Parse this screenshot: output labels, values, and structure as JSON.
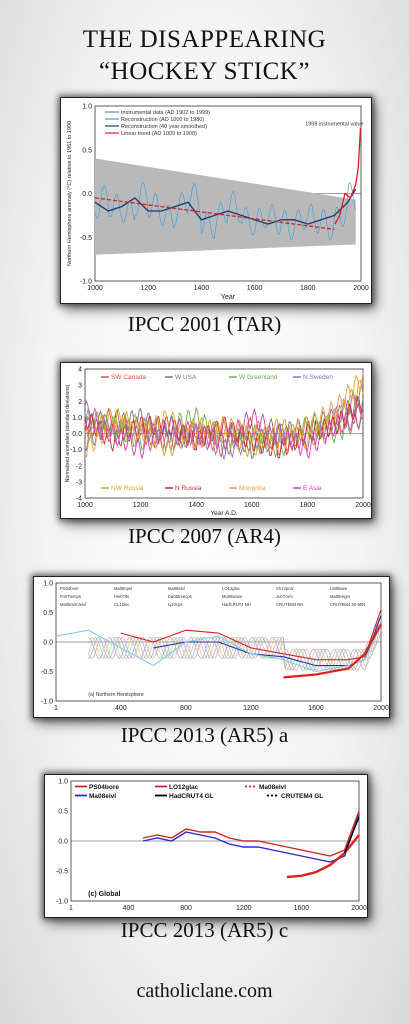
{
  "header": {
    "title_line1": "THE DISAPPEARING",
    "title_line2": "“HOCKEY STICK”"
  },
  "footer": {
    "site": "catholiclane.com"
  },
  "colors": {
    "gray_band": "#b9b9b9",
    "blue": "#2b6fb5",
    "dark": "#1a3a6e",
    "red": "#d22424"
  },
  "chart_data": [
    {
      "type": "line",
      "caption": "IPCC 2001 (TAR)",
      "xlabel": "Year",
      "ylabel": "Northern Hemisphere anomaly (°C) relative to 1961 to 1990",
      "xlim": [
        1000,
        2000
      ],
      "ylim": [
        -1.0,
        1.0
      ],
      "xticks": [
        1000,
        1200,
        1400,
        1600,
        1800,
        2000
      ],
      "yticks": [
        -1.0,
        -0.5,
        0.0,
        0.5,
        1.0
      ],
      "annotation": "1998 instrumental value",
      "legend": [
        "Instrumental data (AD 1902 to 1999)",
        "Reconstruction (AD 1000 to 1980)",
        "Reconstruction (40 year smoothed)",
        "Linear trend (AD 1000 to 1900)"
      ],
      "x": [
        1000,
        1050,
        1100,
        1150,
        1200,
        1250,
        1300,
        1350,
        1400,
        1450,
        1500,
        1550,
        1600,
        1650,
        1700,
        1750,
        1800,
        1850,
        1900,
        1950,
        1980
      ],
      "series": [
        {
          "name": "Reconstruction (40 year smoothed)",
          "values": [
            -0.1,
            -0.2,
            -0.15,
            -0.05,
            -0.2,
            -0.2,
            -0.15,
            -0.1,
            -0.3,
            -0.25,
            -0.2,
            -0.25,
            -0.3,
            -0.35,
            -0.3,
            -0.3,
            -0.35,
            -0.3,
            -0.25,
            -0.1,
            0.05
          ]
        },
        {
          "name": "Linear trend (AD 1000 to 1900)",
          "values": [
            -0.05,
            -0.07,
            -0.09,
            -0.11,
            -0.13,
            -0.15,
            -0.17,
            -0.19,
            -0.21,
            -0.23,
            -0.25,
            -0.27,
            -0.29,
            -0.31,
            -0.33,
            -0.35,
            -0.37,
            -0.39,
            -0.41,
            null,
            null
          ]
        },
        {
          "name": "Instrumental data (AD 1902 to 1999)",
          "x": [
            1902,
            1920,
            1940,
            1960,
            1980,
            1990,
            1998
          ],
          "values": [
            -0.35,
            -0.25,
            0.0,
            -0.05,
            0.1,
            0.3,
            0.75
          ]
        }
      ]
    },
    {
      "type": "line",
      "caption": "IPCC 2007 (AR4)",
      "xlabel": "Year A.D.",
      "ylabel": "Normalised anomalies (standard deviations)",
      "xlim": [
        1000,
        2000
      ],
      "ylim": [
        -4,
        4
      ],
      "xticks": [
        1000,
        1200,
        1400,
        1600,
        1800,
        2000
      ],
      "yticks": [
        -4,
        -3,
        -2,
        -1,
        0,
        1,
        2,
        3,
        4
      ],
      "x": [
        1000,
        1100,
        1200,
        1300,
        1400,
        1500,
        1600,
        1700,
        1800,
        1900,
        2000
      ],
      "series": [
        {
          "name": "SW Canada",
          "color": "#e05050",
          "values": [
            0.5,
            1,
            0,
            -0.5,
            0.3,
            -1,
            0.5,
            -0.8,
            0.2,
            0.5,
            1.5
          ]
        },
        {
          "name": "W USA",
          "color": "#777777",
          "values": [
            -0.5,
            0.5,
            1,
            0,
            -0.5,
            0.5,
            -1,
            0,
            0.5,
            1,
            2
          ]
        },
        {
          "name": "W Greenland",
          "color": "#6ab04c",
          "values": [
            1,
            0.5,
            -0.5,
            0.5,
            1,
            -0.5,
            0,
            -1,
            0.5,
            0,
            1
          ]
        },
        {
          "name": "N Sweden",
          "color": "#9a6ac0",
          "values": [
            1.5,
            0,
            0.5,
            -0.5,
            0,
            -1,
            -0.5,
            0,
            -0.5,
            1,
            2.5
          ]
        },
        {
          "name": "NW Russia",
          "color": "#c0b020",
          "values": [
            0,
            1,
            0.5,
            -1,
            0.5,
            0,
            -1,
            0.5,
            -0.5,
            1,
            3
          ]
        },
        {
          "name": "N Russia",
          "color": "#c03030",
          "values": [
            1,
            -0.5,
            0.5,
            0.5,
            -0.5,
            0.5,
            -0.5,
            -1,
            0,
            0.5,
            2
          ]
        },
        {
          "name": "Mongolia",
          "color": "#f0a040",
          "values": [
            -1,
            0.5,
            0,
            1,
            -0.5,
            0.5,
            0,
            -0.5,
            0.5,
            1.5,
            3.5
          ]
        },
        {
          "name": "E Asia",
          "color": "#d040b0",
          "values": [
            0.5,
            0,
            -1,
            0.5,
            0,
            -0.5,
            1,
            0,
            -1,
            0.5,
            1
          ]
        }
      ]
    },
    {
      "type": "line",
      "caption": "IPCC 2013 (AR5) a",
      "panel_label": "(a) Northern Hemisphere",
      "xlim": [
        1,
        2000
      ],
      "ylim": [
        -1.0,
        1.0
      ],
      "xticks": [
        1,
        400,
        800,
        1200,
        1600,
        2000
      ],
      "yticks": [
        -1.0,
        -0.5,
        0.0,
        0.5,
        1.0
      ],
      "legend": [
        "PS04bore",
        "Ma08cpsl",
        "Ma08eivl",
        "LO12glac",
        "Sh12pcar",
        "LM08ave",
        "Fri07temps",
        "Hei07lts",
        "Da06treecps",
        "Mo05wave",
        "Ju07cvm",
        "Ma08regm",
        "Ma08minVeivf",
        "CL12loc",
        "Lj10cps",
        "HadCRUT4 NH",
        "CRUTEM4 NH",
        "CRUTEM4 30-90N"
      ],
      "x": [
        1,
        200,
        400,
        600,
        800,
        1000,
        1200,
        1400,
        1600,
        1800,
        1900,
        2000
      ],
      "series": [
        {
          "name": "Ma08eivl",
          "color": "#d22424",
          "values": [
            null,
            null,
            0.15,
            0.0,
            0.2,
            0.15,
            -0.1,
            -0.2,
            -0.3,
            -0.3,
            -0.25,
            0.55
          ]
        },
        {
          "name": "Ma08cpsl",
          "color": "#2233aa",
          "values": [
            null,
            null,
            null,
            -0.1,
            0.0,
            0.0,
            -0.2,
            -0.25,
            -0.4,
            -0.4,
            -0.3,
            0.45
          ]
        },
        {
          "name": "CL12loc",
          "color": "#7fd0e0",
          "values": [
            0.1,
            0.2,
            -0.1,
            -0.4,
            0.0,
            0.1,
            -0.2,
            -0.3,
            -0.5,
            -0.4,
            -0.3,
            0.3
          ]
        },
        {
          "name": "PS04bore",
          "color": "#dd2222",
          "values": [
            null,
            null,
            null,
            null,
            null,
            null,
            null,
            -0.6,
            -0.55,
            -0.45,
            -0.2,
            0.3
          ]
        }
      ]
    },
    {
      "type": "line",
      "caption": "IPCC 2013 (AR5) c",
      "panel_label": "(c) Global",
      "xlim": [
        1,
        2000
      ],
      "ylim": [
        -1.0,
        1.0
      ],
      "xticks": [
        1,
        400,
        800,
        1200,
        1600,
        2000
      ],
      "yticks": [
        -1.0,
        -0.5,
        0.0,
        0.5,
        1.0
      ],
      "legend": [
        "PS04bore",
        "Ma08eivl",
        "LO12glac",
        "Ma08eivl",
        "HadCRUT4 GL",
        "CRUTEM4 GL"
      ],
      "x": [
        500,
        600,
        700,
        800,
        900,
        1000,
        1100,
        1200,
        1300,
        1400,
        1500,
        1600,
        1700,
        1800,
        1900,
        2000
      ],
      "series": [
        {
          "name": "Ma08eivl",
          "color": "#d22424",
          "values": [
            0.05,
            0.1,
            0.05,
            0.2,
            0.15,
            0.15,
            0.05,
            0.0,
            0.0,
            -0.05,
            -0.1,
            -0.15,
            -0.2,
            -0.25,
            -0.15,
            0.5
          ]
        },
        {
          "name": "Ma08eivl",
          "color": "#2a2ad0",
          "values": [
            0.0,
            0.05,
            0.0,
            0.15,
            0.1,
            0.05,
            -0.05,
            -0.1,
            -0.1,
            -0.15,
            -0.2,
            -0.25,
            -0.3,
            -0.35,
            -0.25,
            0.45
          ]
        },
        {
          "name": "PS04bore",
          "color": "#dd2222",
          "values": [
            null,
            null,
            null,
            null,
            null,
            null,
            null,
            null,
            null,
            null,
            -0.6,
            -0.58,
            -0.52,
            -0.4,
            -0.2,
            0.1
          ]
        },
        {
          "name": "HadCRUT4 GL",
          "color": "#000000",
          "values": [
            null,
            null,
            null,
            null,
            null,
            null,
            null,
            null,
            null,
            null,
            null,
            null,
            null,
            null,
            -0.2,
            0.4
          ]
        }
      ]
    }
  ]
}
